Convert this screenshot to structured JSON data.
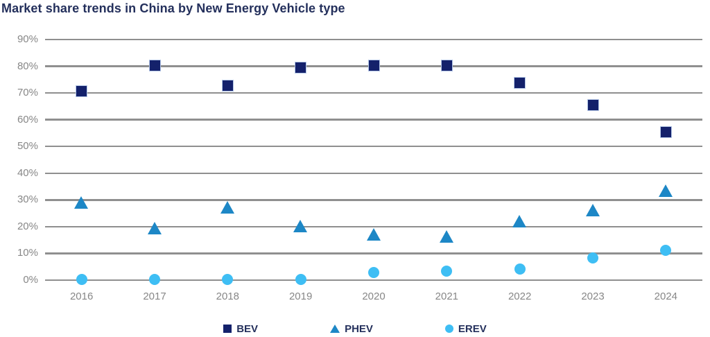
{
  "chart_data": {
    "type": "scatter",
    "title": "Market share trends in China by New Energy Vehicle type",
    "xlabel": "",
    "ylabel": "",
    "categories": [
      "2016",
      "2017",
      "2018",
      "2019",
      "2020",
      "2021",
      "2022",
      "2023",
      "2024"
    ],
    "series": [
      {
        "name": "BEV",
        "marker": "square",
        "color": "#14216b",
        "marker_edge_color": "#b4c7e7",
        "values": [
          70.8,
          80.4,
          72.8,
          79.5,
          80.2,
          80.2,
          73.8,
          65.4,
          55.3
        ]
      },
      {
        "name": "PHEV",
        "marker": "triangle",
        "color": "#1d87c6",
        "values": [
          29.1,
          19.4,
          27.3,
          20.3,
          17.0,
          16.4,
          22.1,
          26.1,
          33.5
        ]
      },
      {
        "name": "EREV",
        "marker": "circle",
        "color": "#3ebef4",
        "values": [
          0.3,
          0.3,
          0.3,
          0.3,
          2.9,
          3.5,
          4.2,
          8.2,
          11.2
        ]
      }
    ],
    "ylim": [
      0,
      90
    ],
    "y_tick_step": 10,
    "y_tick_suffix": "%",
    "grid": "horizontal",
    "gridline_color": "#8f8f8f",
    "axis_label_color": "#878787",
    "title_color": "#24305c",
    "legend_position": "bottom"
  }
}
